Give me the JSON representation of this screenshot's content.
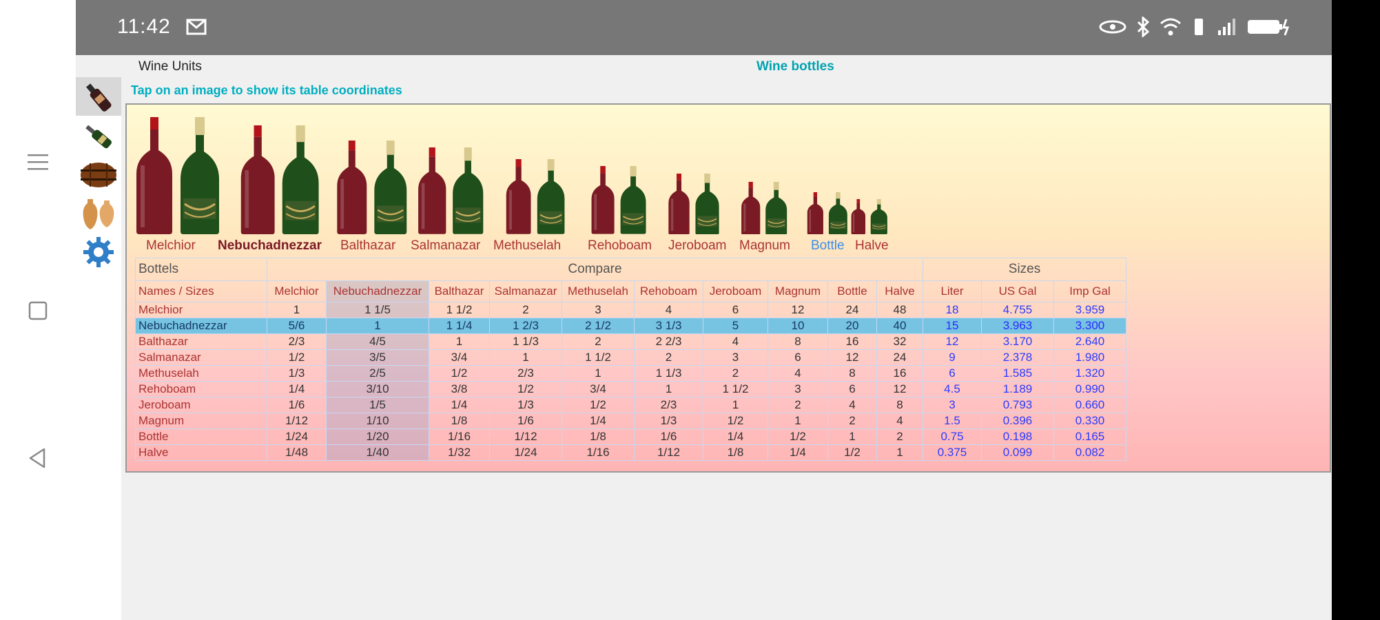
{
  "status_bar": {
    "time": "11:42"
  },
  "header": {
    "app_title": "Wine Units",
    "center_title": "Wine bottles",
    "hint": "Tap on an image to show its table coordinates"
  },
  "tools": [
    "wine-bottle-icon",
    "bottle-icon",
    "barrel-icon",
    "amphora-icon",
    "settings-gear-icon"
  ],
  "bottles": [
    "Melchior",
    "Nebuchadnezzar",
    "Balthazar",
    "Salmanazar",
    "Methuselah",
    "Rehoboam",
    "Jeroboam",
    "Magnum",
    "Bottle",
    "Halve"
  ],
  "table": {
    "corner_label": "Bottels",
    "compare_label": "Compare",
    "sizes_label": "Sizes",
    "names_sizes_label": "Names / Sizes",
    "compare_headers": [
      "Melchior",
      "Nebuchadnezzar",
      "Balthazar",
      "Salmanazar",
      "Methuselah",
      "Rehoboam",
      "Jeroboam",
      "Magnum",
      "Bottle",
      "Halve"
    ],
    "size_headers": [
      "Liter",
      "US Gal",
      "Imp Gal"
    ],
    "rows": [
      {
        "name": "Melchior",
        "compare": [
          "1",
          "1 1/5",
          "1 1/2",
          "2",
          "3",
          "4",
          "6",
          "12",
          "24",
          "48"
        ],
        "sizes": [
          "18",
          "4.755",
          "3.959"
        ]
      },
      {
        "name": "Nebuchadnezzar",
        "compare": [
          "5/6",
          "1",
          "1 1/4",
          "1 2/3",
          "2 1/2",
          "3 1/3",
          "5",
          "10",
          "20",
          "40"
        ],
        "sizes": [
          "15",
          "3.963",
          "3.300"
        ]
      },
      {
        "name": "Balthazar",
        "compare": [
          "2/3",
          "4/5",
          "1",
          "1 1/3",
          "2",
          "2 2/3",
          "4",
          "8",
          "16",
          "32"
        ],
        "sizes": [
          "12",
          "3.170",
          "2.640"
        ]
      },
      {
        "name": "Salmanazar",
        "compare": [
          "1/2",
          "3/5",
          "3/4",
          "1",
          "1 1/2",
          "2",
          "3",
          "6",
          "12",
          "24"
        ],
        "sizes": [
          "9",
          "2.378",
          "1.980"
        ]
      },
      {
        "name": "Methuselah",
        "compare": [
          "1/3",
          "2/5",
          "1/2",
          "2/3",
          "1",
          "1 1/3",
          "2",
          "4",
          "8",
          "16"
        ],
        "sizes": [
          "6",
          "1.585",
          "1.320"
        ]
      },
      {
        "name": "Rehoboam",
        "compare": [
          "1/4",
          "3/10",
          "3/8",
          "1/2",
          "3/4",
          "1",
          "1 1/2",
          "3",
          "6",
          "12"
        ],
        "sizes": [
          "4.5",
          "1.189",
          "0.990"
        ]
      },
      {
        "name": "Jeroboam",
        "compare": [
          "1/6",
          "1/5",
          "1/4",
          "1/3",
          "1/2",
          "2/3",
          "1",
          "2",
          "4",
          "8"
        ],
        "sizes": [
          "3",
          "0.793",
          "0.660"
        ]
      },
      {
        "name": "Magnum",
        "compare": [
          "1/12",
          "1/10",
          "1/8",
          "1/6",
          "1/4",
          "1/3",
          "1/2",
          "1",
          "2",
          "4"
        ],
        "sizes": [
          "1.5",
          "0.396",
          "0.330"
        ]
      },
      {
        "name": "Bottle",
        "compare": [
          "1/24",
          "1/20",
          "1/16",
          "1/12",
          "1/8",
          "1/6",
          "1/4",
          "1/2",
          "1",
          "2"
        ],
        "sizes": [
          "0.75",
          "0.198",
          "0.165"
        ]
      },
      {
        "name": "Halve",
        "compare": [
          "1/48",
          "1/40",
          "1/32",
          "1/24",
          "1/16",
          "1/12",
          "1/8",
          "1/4",
          "1/2",
          "1"
        ],
        "sizes": [
          "0.375",
          "0.099",
          "0.082"
        ]
      }
    ]
  },
  "colors": {
    "accent": "#00aec0",
    "red_wine": "#7a1a24",
    "champagne": "#1f4f1a",
    "row_highlight": "#76c3e2"
  }
}
